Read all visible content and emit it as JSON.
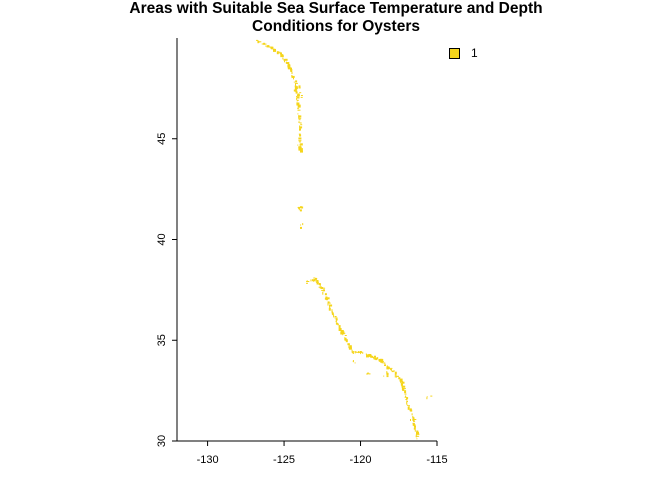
{
  "title_lines": [
    "Areas with Suitable Sea Surface Temperature and Depth",
    "Conditions for Oysters"
  ],
  "legend": {
    "label": "1",
    "color": "#f5d51b"
  },
  "axes": {
    "x_ticks": [
      -130,
      -125,
      -120,
      -115
    ],
    "y_ticks": [
      30,
      35,
      40,
      45
    ],
    "xlim": [
      -132,
      -115
    ],
    "ylim": [
      30,
      50
    ]
  },
  "chart_data": {
    "type": "map",
    "title": "Areas with Suitable Sea Surface Temperature and Depth Conditions for Oysters",
    "legend": [
      "1"
    ],
    "fill_color": "#f5d51b",
    "suitable_coast_path": [
      [
        -126.8,
        49.9
      ],
      [
        -126.0,
        49.6
      ],
      [
        -125.2,
        49.2
      ],
      [
        -124.7,
        48.6
      ],
      [
        -124.3,
        47.8
      ],
      [
        -124.2,
        47.1
      ],
      [
        -124.1,
        46.4
      ],
      [
        -124.0,
        45.7
      ],
      [
        -124.0,
        44.9
      ],
      [
        -124.0,
        44.4
      ],
      [
        -123.6,
        37.9
      ],
      [
        -123.0,
        38.1
      ],
      [
        -122.5,
        37.5
      ],
      [
        -122.1,
        36.8
      ],
      [
        -121.7,
        36.1
      ],
      [
        -121.4,
        35.6
      ],
      [
        -120.9,
        35.0
      ],
      [
        -120.6,
        34.5
      ],
      [
        -119.9,
        34.4
      ],
      [
        -119.2,
        34.2
      ],
      [
        -118.6,
        34.0
      ],
      [
        -118.3,
        33.7
      ],
      [
        -117.8,
        33.4
      ],
      [
        -117.4,
        33.0
      ],
      [
        -117.2,
        32.6
      ],
      [
        -117.0,
        32.0
      ],
      [
        -116.7,
        31.4
      ],
      [
        -116.5,
        30.8
      ],
      [
        -116.3,
        30.1
      ]
    ],
    "suitable_patches": [
      {
        "lon": -124.2,
        "lat": 47.55
      },
      {
        "lon": -123.95,
        "lat": 47.2
      },
      {
        "lon": -124.0,
        "lat": 44.7
      },
      {
        "lon": -124.0,
        "lat": 41.6
      },
      {
        "lon": -123.8,
        "lat": 40.7
      },
      {
        "lon": -123.0,
        "lat": 38.0
      },
      {
        "lon": -122.6,
        "lat": 37.7
      },
      {
        "lon": -120.5,
        "lat": 33.95
      },
      {
        "lon": -119.5,
        "lat": 33.35
      },
      {
        "lon": -118.4,
        "lat": 33.35
      },
      {
        "lon": -116.6,
        "lat": 31.0
      },
      {
        "lon": -115.6,
        "lat": 32.2
      }
    ]
  }
}
